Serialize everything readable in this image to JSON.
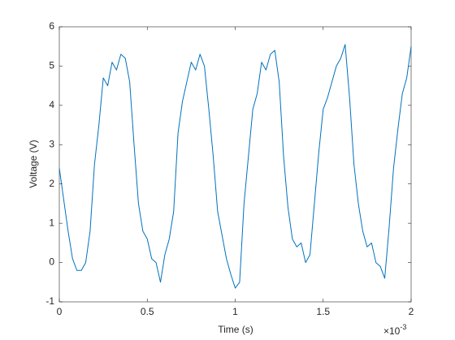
{
  "chart_data": {
    "type": "line",
    "xlabel": "Time (s)",
    "ylabel": "Voltage (V)",
    "x_exponent": {
      "base": "×10",
      "power": "-3"
    },
    "x": [
      0,
      2.5e-05,
      5e-05,
      7.5e-05,
      0.0001,
      0.000125,
      0.00015,
      0.000175,
      0.0002,
      0.000225,
      0.00025,
      0.000275,
      0.0003,
      0.000325,
      0.00035,
      0.000375,
      0.0004,
      0.000425,
      0.00045,
      0.000475,
      0.0005,
      0.000525,
      0.00055,
      0.000575,
      0.0006,
      0.000625,
      0.00065,
      0.000675,
      0.0007,
      0.000725,
      0.00075,
      0.000775,
      0.0008,
      0.000825,
      0.00085,
      0.000875,
      0.0009,
      0.000925,
      0.00095,
      0.000975,
      0.001,
      0.001025,
      0.00105,
      0.001075,
      0.0011,
      0.001125,
      0.00115,
      0.001175,
      0.0012,
      0.001225,
      0.00125,
      0.001275,
      0.0013,
      0.001325,
      0.00135,
      0.001375,
      0.0014,
      0.001425,
      0.00145,
      0.001475,
      0.0015,
      0.001525,
      0.00155,
      0.001575,
      0.0016,
      0.001625,
      0.00165,
      0.001675,
      0.0017,
      0.001725,
      0.00175,
      0.001775,
      0.0018,
      0.001825,
      0.00185,
      0.001875,
      0.0019,
      0.001925,
      0.00195,
      0.001975,
      0.002
    ],
    "series": [
      {
        "name": "Voltage",
        "color": "#0072bd",
        "values": [
          2.4,
          1.6,
          0.8,
          0.1,
          -0.2,
          -0.2,
          0.0,
          0.8,
          2.5,
          3.5,
          4.7,
          4.5,
          5.1,
          4.9,
          5.3,
          5.2,
          4.6,
          3.0,
          1.5,
          0.8,
          0.6,
          0.1,
          0.0,
          -0.5,
          0.2,
          0.6,
          1.3,
          3.3,
          4.1,
          4.6,
          5.1,
          4.9,
          5.3,
          5.0,
          3.9,
          2.7,
          1.3,
          0.7,
          0.1,
          -0.3,
          -0.65,
          -0.5,
          1.5,
          2.7,
          3.9,
          4.3,
          5.1,
          4.9,
          5.3,
          5.4,
          4.6,
          2.7,
          1.4,
          0.6,
          0.4,
          0.5,
          0.0,
          0.2,
          1.5,
          2.8,
          3.9,
          4.2,
          4.6,
          5.0,
          5.2,
          5.55,
          4.2,
          2.5,
          1.5,
          0.8,
          0.4,
          0.5,
          0.0,
          -0.1,
          -0.4,
          0.9,
          2.4,
          3.4,
          4.3,
          4.7,
          5.5
        ]
      }
    ],
    "xlim": [
      0,
      0.002
    ],
    "xticks": [
      0,
      {
        "value": 0.0005,
        "label": "0.5"
      },
      {
        "value": 0.001,
        "label": "1"
      },
      {
        "value": 0.0015,
        "label": "1.5"
      },
      {
        "value": 0.002,
        "label": "2"
      }
    ],
    "ylim": [
      -1,
      6
    ],
    "yticks": [
      -1,
      0,
      1,
      2,
      3,
      4,
      5,
      6
    ],
    "grid": false
  }
}
